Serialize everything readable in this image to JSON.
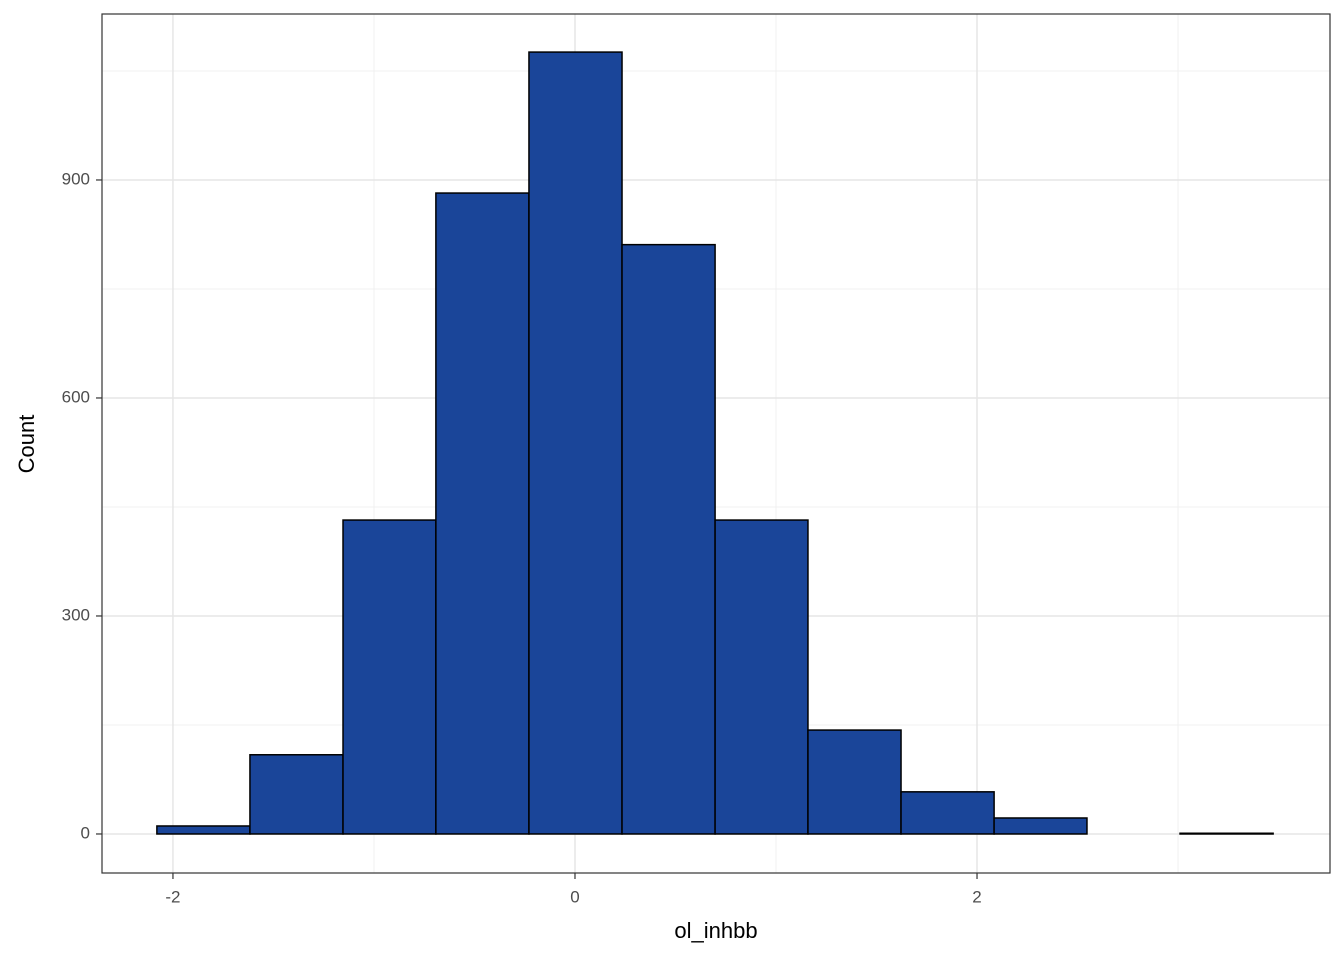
{
  "chart_data": {
    "type": "histogram",
    "x_label": "ol_inhbb",
    "y_label": "Count",
    "bins": [
      -2.08,
      -1.617,
      -1.154,
      -0.692,
      -0.229,
      0.234,
      0.697,
      1.159,
      1.622,
      2.085,
      2.547,
      3.01,
      3.473
    ],
    "values": [
      11,
      109,
      432,
      882,
      1076,
      811,
      432,
      143,
      58,
      22,
      0,
      1
    ],
    "color": "#1a4599",
    "edge_color": "#000000",
    "xlim": [
      -2.353,
      3.756
    ],
    "ylim": [
      -53.7,
      1128.4
    ],
    "xticks": [
      -2,
      0,
      2
    ],
    "yticks": [
      0,
      300,
      600,
      900
    ],
    "x_minor_grid": [
      -1,
      1,
      3
    ],
    "y_minor_grid": [
      150,
      450,
      750,
      1050
    ],
    "grid": true
  }
}
